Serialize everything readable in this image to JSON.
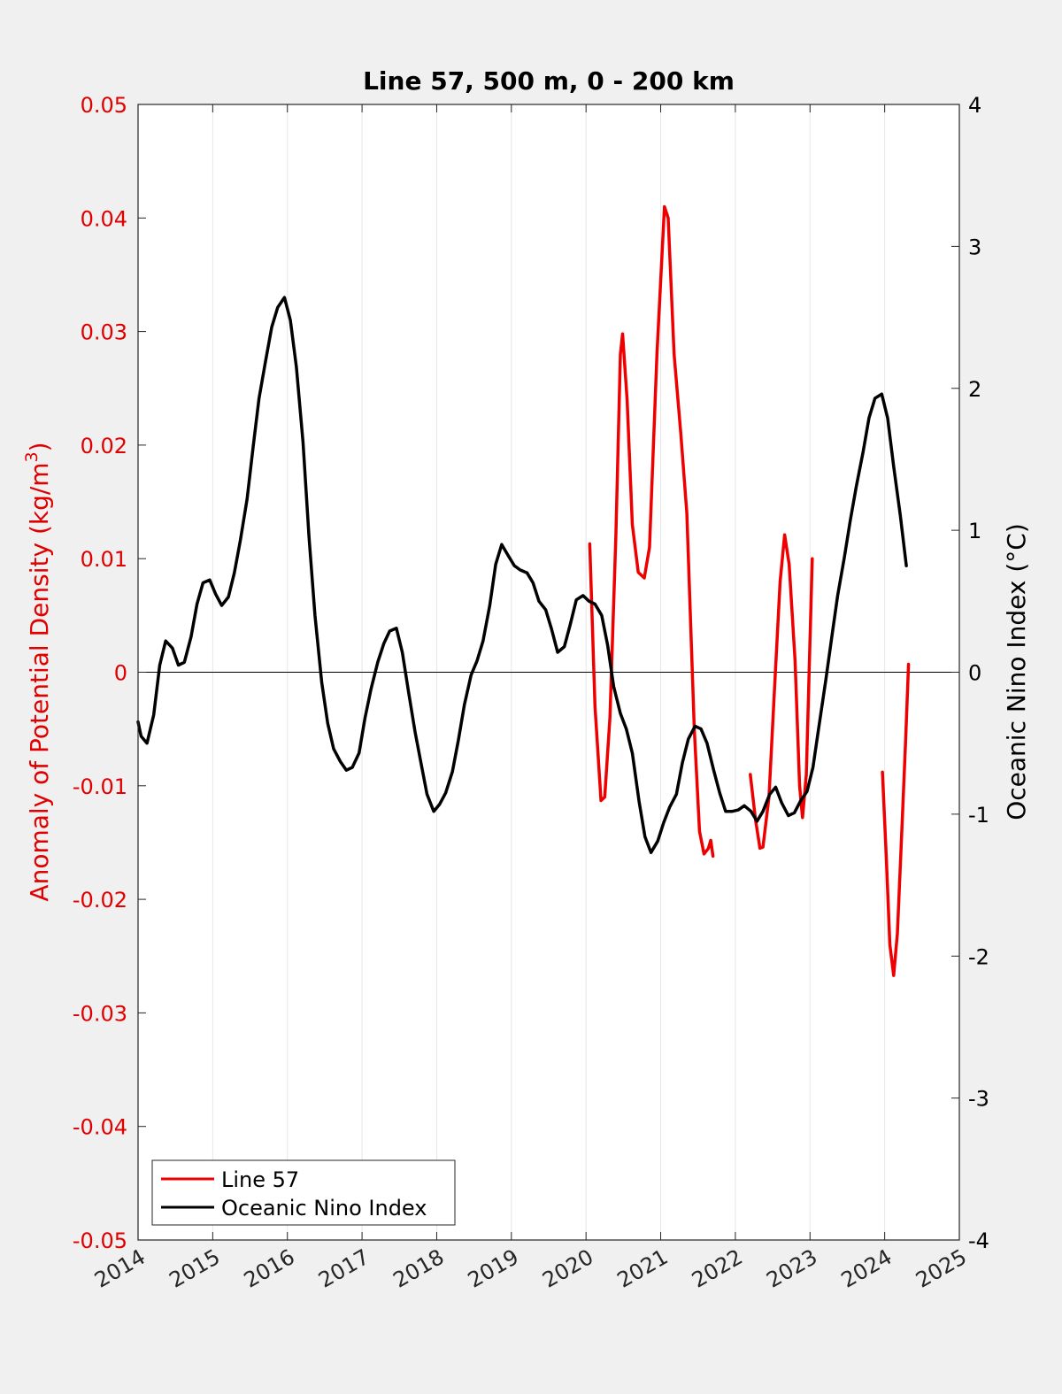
{
  "chart_data": {
    "type": "line",
    "title": "Line 57, 500 m, 0 - 200 km",
    "ylabel_left": "Anomaly of Potential Density (kg/m",
    "ylabel_left_sup": "3",
    "ylabel_left_close": ")",
    "ylabel_right": "Oceanic Nino Index (°C)",
    "xlim": [
      2014,
      2025
    ],
    "ylim_left": [
      -0.05,
      0.05
    ],
    "ylim_right": [
      -4,
      4
    ],
    "x_ticks": [
      "2014",
      "2015",
      "2016",
      "2017",
      "2018",
      "2019",
      "2020",
      "2021",
      "2022",
      "2023",
      "2024",
      "2025"
    ],
    "y_left_ticks": [
      "0.05",
      "0.04",
      "0.03",
      "0.02",
      "0.01",
      "0",
      "-0.01",
      "-0.02",
      "-0.03",
      "-0.04",
      "-0.05"
    ],
    "y_right_ticks": [
      "4",
      "3",
      "2",
      "1",
      "0",
      "-1",
      "-2",
      "-3",
      "-4"
    ],
    "grid": "vertical",
    "legend_position": "bottom-left",
    "colors": {
      "line57": "#ee0000",
      "oni": "#000000",
      "left_axis": "#e00000",
      "right_axis": "#000000"
    },
    "series": [
      {
        "name": "Line 57",
        "axis": "left",
        "segments": [
          [
            [
              2020.05,
              0.0113
            ],
            [
              2020.12,
              -0.003
            ],
            [
              2020.2,
              -0.0113
            ],
            [
              2020.25,
              -0.011
            ],
            [
              2020.32,
              -0.004
            ],
            [
              2020.4,
              0.012
            ],
            [
              2020.46,
              0.028
            ],
            [
              2020.49,
              0.0298
            ],
            [
              2020.55,
              0.024
            ],
            [
              2020.62,
              0.013
            ],
            [
              2020.7,
              0.0088
            ],
            [
              2020.78,
              0.0083
            ],
            [
              2020.85,
              0.011
            ],
            [
              2020.95,
              0.028
            ],
            [
              2021.05,
              0.041
            ],
            [
              2021.1,
              0.04
            ],
            [
              2021.18,
              0.028
            ],
            [
              2021.27,
              0.021
            ],
            [
              2021.35,
              0.014
            ],
            [
              2021.45,
              -0.005
            ],
            [
              2021.52,
              -0.014
            ],
            [
              2021.58,
              -0.016
            ],
            [
              2021.64,
              -0.0155
            ],
            [
              2021.67,
              -0.0148
            ],
            [
              2021.7,
              -0.0162
            ]
          ],
          [
            [
              2022.2,
              -0.009
            ],
            [
              2022.27,
              -0.013
            ],
            [
              2022.33,
              -0.0155
            ],
            [
              2022.37,
              -0.0154
            ],
            [
              2022.45,
              -0.011
            ],
            [
              2022.52,
              -0.002
            ],
            [
              2022.6,
              0.008
            ],
            [
              2022.66,
              0.0121
            ],
            [
              2022.72,
              0.0095
            ],
            [
              2022.8,
              0.001
            ],
            [
              2022.86,
              -0.01
            ],
            [
              2022.9,
              -0.0128
            ],
            [
              2022.95,
              -0.009
            ],
            [
              2023.03,
              0.01
            ]
          ],
          [
            [
              2023.97,
              -0.0088
            ],
            [
              2024.02,
              -0.016
            ],
            [
              2024.07,
              -0.024
            ],
            [
              2024.12,
              -0.0267
            ],
            [
              2024.17,
              -0.023
            ],
            [
              2024.23,
              -0.014
            ],
            [
              2024.28,
              -0.006
            ],
            [
              2024.32,
              0.0007
            ]
          ]
        ]
      },
      {
        "name": "Oceanic Nino Index",
        "axis": "right",
        "points": [
          [
            2014.0,
            -0.35
          ],
          [
            2014.04,
            -0.45
          ],
          [
            2014.12,
            -0.5
          ],
          [
            2014.21,
            -0.3
          ],
          [
            2014.29,
            0.05
          ],
          [
            2014.37,
            0.22
          ],
          [
            2014.46,
            0.17
          ],
          [
            2014.54,
            0.05
          ],
          [
            2014.62,
            0.07
          ],
          [
            2014.71,
            0.25
          ],
          [
            2014.79,
            0.48
          ],
          [
            2014.87,
            0.63
          ],
          [
            2014.96,
            0.65
          ],
          [
            2015.04,
            0.55
          ],
          [
            2015.12,
            0.47
          ],
          [
            2015.21,
            0.53
          ],
          [
            2015.29,
            0.7
          ],
          [
            2015.37,
            0.93
          ],
          [
            2015.46,
            1.22
          ],
          [
            2015.54,
            1.58
          ],
          [
            2015.62,
            1.93
          ],
          [
            2015.71,
            2.2
          ],
          [
            2015.79,
            2.43
          ],
          [
            2015.87,
            2.57
          ],
          [
            2015.96,
            2.64
          ],
          [
            2016.04,
            2.48
          ],
          [
            2016.12,
            2.15
          ],
          [
            2016.21,
            1.62
          ],
          [
            2016.29,
            0.95
          ],
          [
            2016.37,
            0.4
          ],
          [
            2016.46,
            -0.07
          ],
          [
            2016.54,
            -0.36
          ],
          [
            2016.62,
            -0.54
          ],
          [
            2016.71,
            -0.63
          ],
          [
            2016.79,
            -0.69
          ],
          [
            2016.87,
            -0.67
          ],
          [
            2016.96,
            -0.57
          ],
          [
            2017.04,
            -0.32
          ],
          [
            2017.12,
            -0.12
          ],
          [
            2017.21,
            0.07
          ],
          [
            2017.29,
            0.2
          ],
          [
            2017.37,
            0.29
          ],
          [
            2017.46,
            0.31
          ],
          [
            2017.54,
            0.14
          ],
          [
            2017.62,
            -0.13
          ],
          [
            2017.71,
            -0.42
          ],
          [
            2017.79,
            -0.64
          ],
          [
            2017.87,
            -0.86
          ],
          [
            2017.96,
            -0.98
          ],
          [
            2018.04,
            -0.93
          ],
          [
            2018.12,
            -0.85
          ],
          [
            2018.21,
            -0.7
          ],
          [
            2018.29,
            -0.48
          ],
          [
            2018.37,
            -0.23
          ],
          [
            2018.46,
            -0.02
          ],
          [
            2018.54,
            0.08
          ],
          [
            2018.62,
            0.22
          ],
          [
            2018.71,
            0.47
          ],
          [
            2018.79,
            0.76
          ],
          [
            2018.87,
            0.9
          ],
          [
            2018.96,
            0.82
          ],
          [
            2019.04,
            0.75
          ],
          [
            2019.12,
            0.72
          ],
          [
            2019.21,
            0.7
          ],
          [
            2019.29,
            0.63
          ],
          [
            2019.37,
            0.5
          ],
          [
            2019.46,
            0.44
          ],
          [
            2019.54,
            0.3
          ],
          [
            2019.62,
            0.14
          ],
          [
            2019.71,
            0.18
          ],
          [
            2019.79,
            0.34
          ],
          [
            2019.87,
            0.51
          ],
          [
            2019.96,
            0.54
          ],
          [
            2020.04,
            0.5
          ],
          [
            2020.12,
            0.48
          ],
          [
            2020.21,
            0.4
          ],
          [
            2020.29,
            0.19
          ],
          [
            2020.37,
            -0.1
          ],
          [
            2020.46,
            -0.29
          ],
          [
            2020.54,
            -0.4
          ],
          [
            2020.62,
            -0.57
          ],
          [
            2020.71,
            -0.91
          ],
          [
            2020.79,
            -1.16
          ],
          [
            2020.87,
            -1.27
          ],
          [
            2020.96,
            -1.19
          ],
          [
            2021.04,
            -1.06
          ],
          [
            2021.12,
            -0.95
          ],
          [
            2021.21,
            -0.86
          ],
          [
            2021.29,
            -0.64
          ],
          [
            2021.37,
            -0.47
          ],
          [
            2021.46,
            -0.38
          ],
          [
            2021.54,
            -0.4
          ],
          [
            2021.62,
            -0.5
          ],
          [
            2021.71,
            -0.69
          ],
          [
            2021.79,
            -0.85
          ],
          [
            2021.87,
            -0.98
          ],
          [
            2021.96,
            -0.98
          ],
          [
            2022.04,
            -0.97
          ],
          [
            2022.12,
            -0.94
          ],
          [
            2022.21,
            -0.98
          ],
          [
            2022.29,
            -1.05
          ],
          [
            2022.37,
            -0.98
          ],
          [
            2022.46,
            -0.86
          ],
          [
            2022.54,
            -0.81
          ],
          [
            2022.62,
            -0.92
          ],
          [
            2022.71,
            -1.01
          ],
          [
            2022.79,
            -0.99
          ],
          [
            2022.87,
            -0.91
          ],
          [
            2022.96,
            -0.84
          ],
          [
            2023.04,
            -0.67
          ],
          [
            2023.12,
            -0.38
          ],
          [
            2023.21,
            -0.06
          ],
          [
            2023.29,
            0.24
          ],
          [
            2023.37,
            0.54
          ],
          [
            2023.46,
            0.81
          ],
          [
            2023.54,
            1.07
          ],
          [
            2023.62,
            1.31
          ],
          [
            2023.71,
            1.55
          ],
          [
            2023.79,
            1.79
          ],
          [
            2023.87,
            1.93
          ],
          [
            2023.96,
            1.96
          ],
          [
            2024.04,
            1.79
          ],
          [
            2024.12,
            1.45
          ],
          [
            2024.21,
            1.1
          ],
          [
            2024.29,
            0.75
          ]
        ]
      }
    ]
  },
  "legend": {
    "entries": [
      {
        "label": "Line 57",
        "color": "#ee0000"
      },
      {
        "label": "Oceanic Nino Index",
        "color": "#000000"
      }
    ]
  }
}
